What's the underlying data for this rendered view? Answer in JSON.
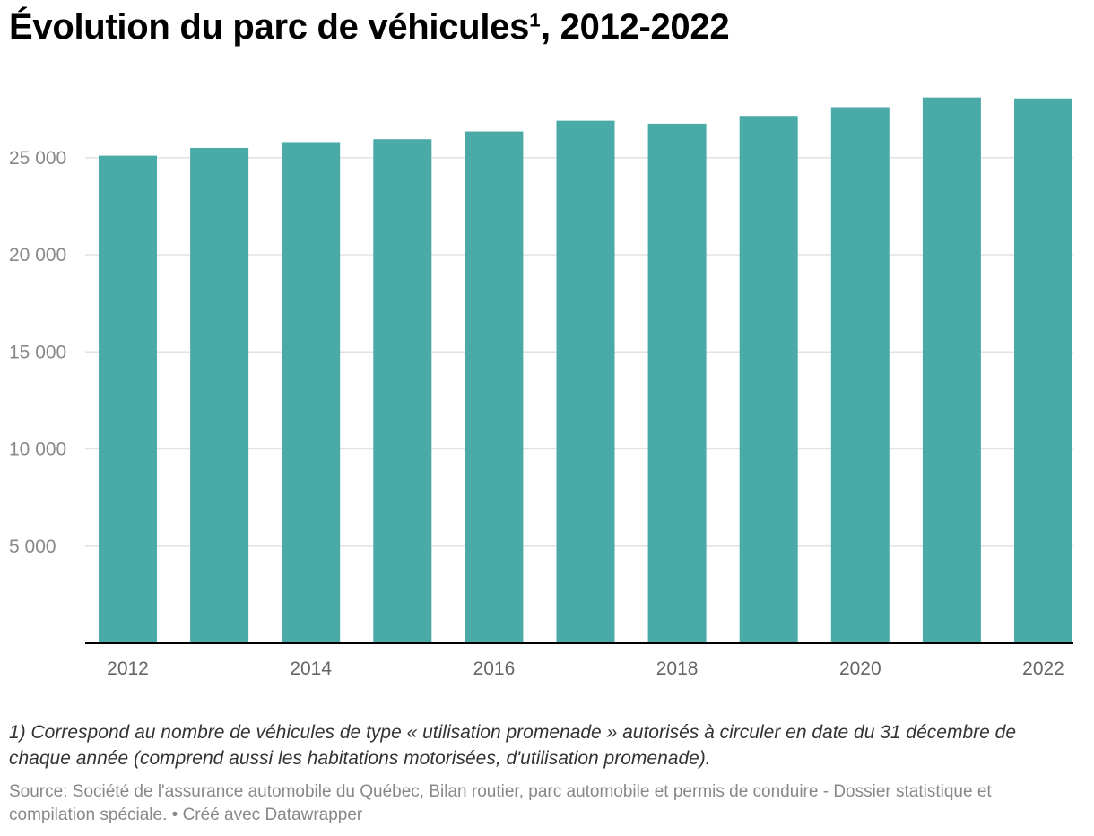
{
  "header": {
    "title": "Évolution du parc de véhicules¹, 2012-2022"
  },
  "footer": {
    "note": "1) Correspond au nombre de véhicules de type « utilisation promenade » autorisés à circuler en date du 31 décembre de chaque année (comprend aussi les habitations motorisées, d'utilisation promenade).",
    "source_label": "Source: ",
    "source_text": "Société de l'assurance automobile du Québec, Bilan routier, parc automobile et permis de conduire - Dossier statistique et compilation spéciale.",
    "credit": " • Créé avec Datawrapper"
  },
  "chart_data": {
    "type": "bar",
    "categories": [
      "2012",
      "2013",
      "2014",
      "2015",
      "2016",
      "2017",
      "2018",
      "2019",
      "2020",
      "2021",
      "2022"
    ],
    "values": [
      25100,
      25500,
      25800,
      25950,
      26350,
      26900,
      26750,
      27150,
      27600,
      28100,
      28050
    ],
    "x_tick_labels": [
      "2012",
      "",
      "2014",
      "",
      "2016",
      "",
      "2018",
      "",
      "2020",
      "",
      "2022"
    ],
    "y_ticks": [
      5000,
      10000,
      15000,
      20000,
      25000
    ],
    "y_tick_labels": [
      "5 000",
      "10 000",
      "15 000",
      "20 000",
      "25 000"
    ],
    "ylim": [
      0,
      28500
    ],
    "grid": true,
    "bar_color": "#4aaaa7",
    "title": "Évolution du parc de véhicules¹, 2012-2022",
    "xlabel": "",
    "ylabel": ""
  }
}
